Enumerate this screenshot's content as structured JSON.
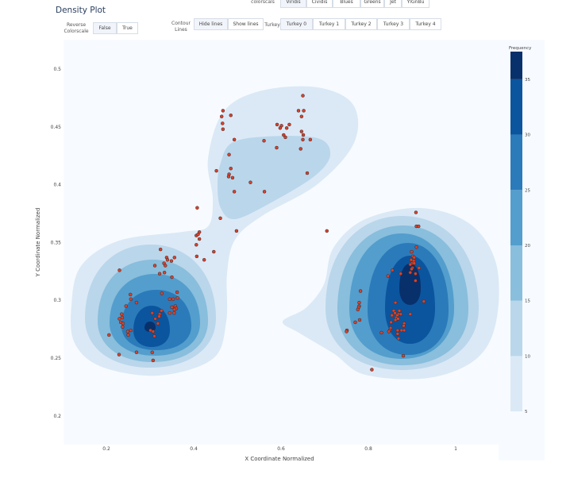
{
  "title": "Density Plot",
  "controls": {
    "colorscales_label": "colorscals",
    "colorscales": [
      "Viridis",
      "Cividis",
      "Blues",
      "Greens",
      "Jet",
      "YlGnBu"
    ],
    "reverse_label_1": "Reverse",
    "reverse_label_2": "Colorscale",
    "reverse_options": [
      "False",
      "True"
    ],
    "contour_label_1": "Contour",
    "contour_label_2": "Lines",
    "contour_options": [
      "Hide lines",
      "Show lines"
    ],
    "turkey_label": "Turkey",
    "turkey_options": [
      "Turkey 0",
      "Turkey 1",
      "Turkey 2",
      "Turkey 3",
      "Turkey 4"
    ]
  },
  "chart_data": {
    "type": "contour",
    "xlabel": "X Coordinate Normalized",
    "ylabel": "Y Coordinate Normalized",
    "xlim": [
      0.1,
      1.1
    ],
    "ylim": [
      0.175,
      0.525
    ],
    "xticks": [
      "0.2",
      "0.4",
      "0.6",
      "0.8",
      "1"
    ],
    "xtick_values": [
      0.2,
      0.4,
      0.6,
      0.8,
      1.0
    ],
    "yticks": [
      "0.2",
      "0.25",
      "0.3",
      "0.35",
      "0.4",
      "0.45",
      "0.5"
    ],
    "ytick_values": [
      0.2,
      0.25,
      0.3,
      0.35,
      0.4,
      0.45,
      0.5
    ],
    "grid": false,
    "colorbar": {
      "title": "Frequency",
      "ticks": [
        "5",
        "10",
        "15",
        "20",
        "25",
        "30",
        "35"
      ],
      "tick_values": [
        5,
        10,
        15,
        20,
        25,
        30,
        35
      ],
      "range": [
        2.5,
        37.5
      ],
      "colors": [
        "#f7fbff",
        "#dbe9f6",
        "#bad6eb",
        "#89bedc",
        "#539ecd",
        "#2b7bba",
        "#0b559f",
        "#08306b"
      ]
    },
    "point_color": "#d9412b",
    "points": [
      [
        0.65,
        0.477
      ],
      [
        0.64,
        0.464
      ],
      [
        0.652,
        0.464
      ],
      [
        0.647,
        0.459
      ],
      [
        0.467,
        0.464
      ],
      [
        0.464,
        0.459
      ],
      [
        0.485,
        0.46
      ],
      [
        0.466,
        0.453
      ],
      [
        0.467,
        0.448
      ],
      [
        0.591,
        0.452
      ],
      [
        0.601,
        0.451
      ],
      [
        0.598,
        0.449
      ],
      [
        0.613,
        0.449
      ],
      [
        0.619,
        0.452
      ],
      [
        0.606,
        0.443
      ],
      [
        0.61,
        0.441
      ],
      [
        0.647,
        0.446
      ],
      [
        0.651,
        0.443
      ],
      [
        0.65,
        0.439
      ],
      [
        0.667,
        0.439
      ],
      [
        0.493,
        0.439
      ],
      [
        0.561,
        0.438
      ],
      [
        0.59,
        0.432
      ],
      [
        0.645,
        0.431
      ],
      [
        0.481,
        0.426
      ],
      [
        0.485,
        0.414
      ],
      [
        0.452,
        0.412
      ],
      [
        0.481,
        0.409
      ],
      [
        0.48,
        0.407
      ],
      [
        0.489,
        0.406
      ],
      [
        0.53,
        0.402
      ],
      [
        0.66,
        0.41
      ],
      [
        0.493,
        0.394
      ],
      [
        0.562,
        0.394
      ],
      [
        0.408,
        0.38
      ],
      [
        0.461,
        0.371
      ],
      [
        0.498,
        0.36
      ],
      [
        0.705,
        0.36
      ],
      [
        0.413,
        0.359
      ],
      [
        0.406,
        0.356
      ],
      [
        0.41,
        0.357
      ],
      [
        0.413,
        0.353
      ],
      [
        0.406,
        0.348
      ],
      [
        0.446,
        0.342
      ],
      [
        0.407,
        0.338
      ],
      [
        0.424,
        0.335
      ],
      [
        0.324,
        0.344
      ],
      [
        0.338,
        0.337
      ],
      [
        0.356,
        0.337
      ],
      [
        0.34,
        0.335
      ],
      [
        0.349,
        0.334
      ],
      [
        0.332,
        0.332
      ],
      [
        0.335,
        0.33
      ],
      [
        0.311,
        0.33
      ],
      [
        0.23,
        0.326
      ],
      [
        0.333,
        0.324
      ],
      [
        0.322,
        0.323
      ],
      [
        0.35,
        0.32
      ],
      [
        0.255,
        0.305
      ],
      [
        0.327,
        0.306
      ],
      [
        0.362,
        0.307
      ],
      [
        0.256,
        0.301
      ],
      [
        0.345,
        0.301
      ],
      [
        0.353,
        0.301
      ],
      [
        0.363,
        0.302
      ],
      [
        0.269,
        0.298
      ],
      [
        0.245,
        0.295
      ],
      [
        0.326,
        0.291
      ],
      [
        0.35,
        0.294
      ],
      [
        0.358,
        0.295
      ],
      [
        0.36,
        0.293
      ],
      [
        0.356,
        0.292
      ],
      [
        0.345,
        0.289
      ],
      [
        0.355,
        0.289
      ],
      [
        0.305,
        0.289
      ],
      [
        0.322,
        0.288
      ],
      [
        0.321,
        0.286
      ],
      [
        0.235,
        0.288
      ],
      [
        0.236,
        0.285
      ],
      [
        0.23,
        0.284
      ],
      [
        0.233,
        0.281
      ],
      [
        0.238,
        0.28
      ],
      [
        0.312,
        0.284
      ],
      [
        0.318,
        0.28
      ],
      [
        0.237,
        0.277
      ],
      [
        0.256,
        0.274
      ],
      [
        0.249,
        0.273
      ],
      [
        0.301,
        0.274
      ],
      [
        0.307,
        0.273
      ],
      [
        0.25,
        0.27
      ],
      [
        0.31,
        0.269
      ],
      [
        0.206,
        0.27
      ],
      [
        0.229,
        0.253
      ],
      [
        0.269,
        0.255
      ],
      [
        0.305,
        0.255
      ],
      [
        0.307,
        0.248
      ],
      [
        0.909,
        0.376
      ],
      [
        0.91,
        0.364
      ],
      [
        0.915,
        0.364
      ],
      [
        0.91,
        0.346
      ],
      [
        0.899,
        0.342
      ],
      [
        0.902,
        0.338
      ],
      [
        0.905,
        0.337
      ],
      [
        0.898,
        0.335
      ],
      [
        0.904,
        0.334
      ],
      [
        0.9,
        0.332
      ],
      [
        0.905,
        0.332
      ],
      [
        0.896,
        0.331
      ],
      [
        0.901,
        0.328
      ],
      [
        0.916,
        0.328
      ],
      [
        0.899,
        0.327
      ],
      [
        0.855,
        0.326
      ],
      [
        0.896,
        0.324
      ],
      [
        0.874,
        0.323
      ],
      [
        0.908,
        0.323
      ],
      [
        0.845,
        0.321
      ],
      [
        0.908,
        0.317
      ],
      [
        0.927,
        0.299
      ],
      [
        0.862,
        0.298
      ],
      [
        0.782,
        0.308
      ],
      [
        0.779,
        0.298
      ],
      [
        0.779,
        0.295
      ],
      [
        0.778,
        0.294
      ],
      [
        0.776,
        0.292
      ],
      [
        0.858,
        0.291
      ],
      [
        0.871,
        0.291
      ],
      [
        0.861,
        0.289
      ],
      [
        0.874,
        0.288
      ],
      [
        0.869,
        0.288
      ],
      [
        0.896,
        0.288
      ],
      [
        0.854,
        0.287
      ],
      [
        0.866,
        0.287
      ],
      [
        0.864,
        0.285
      ],
      [
        0.868,
        0.284
      ],
      [
        0.862,
        0.283
      ],
      [
        0.77,
        0.281
      ],
      [
        0.78,
        0.283
      ],
      [
        0.852,
        0.281
      ],
      [
        0.882,
        0.28
      ],
      [
        0.881,
        0.278
      ],
      [
        0.851,
        0.276
      ],
      [
        0.849,
        0.274
      ],
      [
        0.867,
        0.274
      ],
      [
        0.876,
        0.274
      ],
      [
        0.882,
        0.274
      ],
      [
        0.847,
        0.273
      ],
      [
        0.83,
        0.272
      ],
      [
        0.867,
        0.271
      ],
      [
        0.869,
        0.267
      ],
      [
        0.751,
        0.274
      ],
      [
        0.75,
        0.273
      ],
      [
        0.88,
        0.252
      ],
      [
        0.808,
        0.24
      ]
    ]
  }
}
